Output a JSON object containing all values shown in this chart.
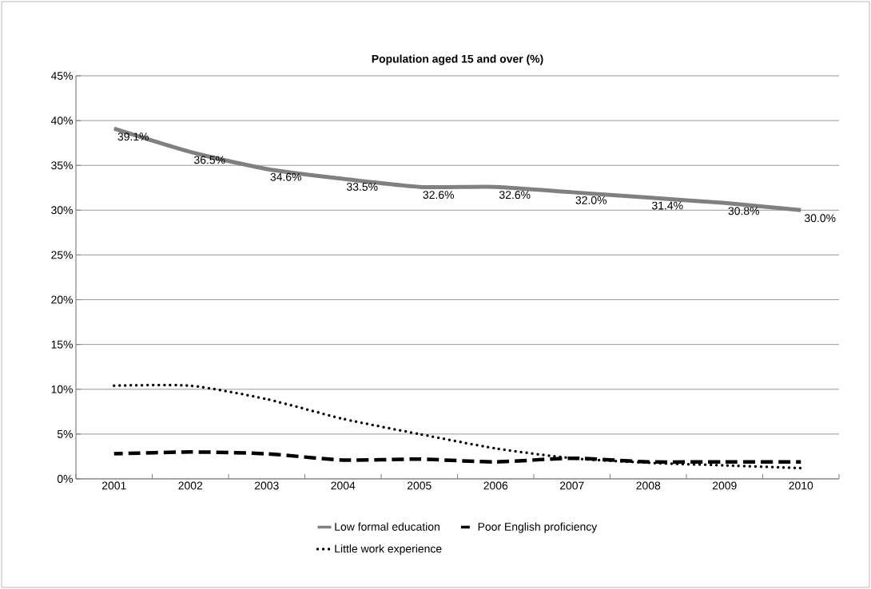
{
  "chart_data": {
    "type": "line",
    "title": "Population aged 15 and over (%)",
    "categories": [
      "2001",
      "2002",
      "2003",
      "2004",
      "2005",
      "2006",
      "2007",
      "2008",
      "2009",
      "2010"
    ],
    "series": [
      {
        "name": "Low formal education",
        "color": "#808080",
        "line_style": "solid",
        "values": [
          39.1,
          36.5,
          34.6,
          33.5,
          32.6,
          32.6,
          32.0,
          31.4,
          30.8,
          30.0
        ],
        "value_labels": [
          "39.1%",
          "36.5%",
          "34.6%",
          "33.5%",
          "32.6%",
          "32.6%",
          "32.0%",
          "31.4%",
          "30.8%",
          "30.0%"
        ]
      },
      {
        "name": "Poor English proficiency",
        "color": "#000000",
        "line_style": "dashed",
        "values": [
          2.8,
          3.0,
          2.8,
          2.1,
          2.2,
          1.9,
          2.3,
          1.9,
          1.9,
          1.9
        ]
      },
      {
        "name": "Little work experience",
        "color": "#000000",
        "line_style": "dotted",
        "values": [
          10.4,
          10.4,
          8.9,
          6.7,
          5.0,
          3.4,
          2.3,
          1.8,
          1.5,
          1.2
        ]
      }
    ],
    "ylim": [
      0,
      45
    ],
    "yticks": [
      {
        "value": 0,
        "label": "0%"
      },
      {
        "value": 5,
        "label": "5%"
      },
      {
        "value": 10,
        "label": "10%"
      },
      {
        "value": 15,
        "label": "15%"
      },
      {
        "value": 20,
        "label": "20%"
      },
      {
        "value": 25,
        "label": "25%"
      },
      {
        "value": 30,
        "label": "30%"
      },
      {
        "value": 35,
        "label": "35%"
      },
      {
        "value": 40,
        "label": "40%"
      },
      {
        "value": 45,
        "label": "45%"
      }
    ],
    "grid": "y",
    "legend": "bottom",
    "marker": "none"
  }
}
